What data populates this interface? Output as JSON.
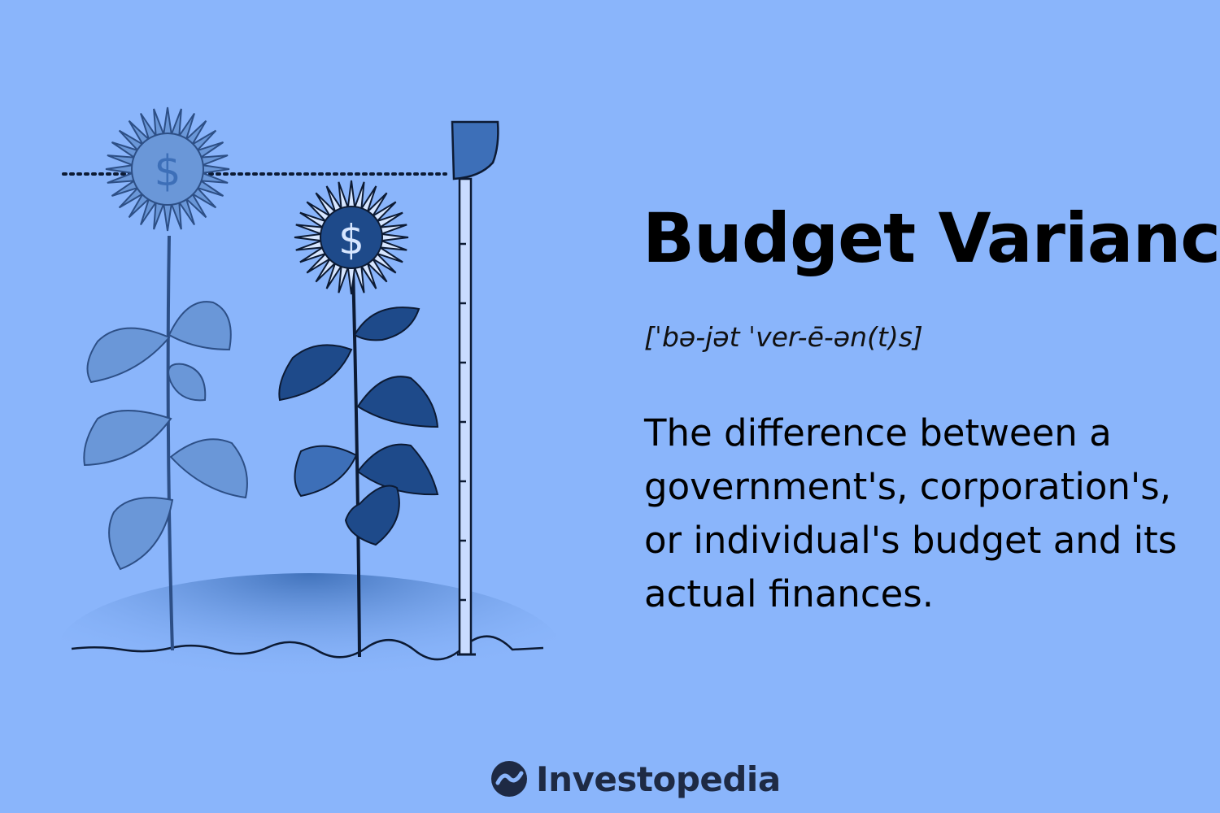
{
  "title": "Budget Variance",
  "pronunciation": "[ˈbə-jət ˈver-ē-ən(t)s]",
  "definition": "The difference between a government's, corporation's, or individual's budget and its actual finances.",
  "brand": "Investopedia",
  "flower_symbol": "$",
  "colors": {
    "background": "#8ab5fb",
    "dark_blue": "#1e4a8a",
    "mid_blue": "#3d6fb8",
    "faded_blue": "#6a97d8",
    "text": "#000000"
  }
}
